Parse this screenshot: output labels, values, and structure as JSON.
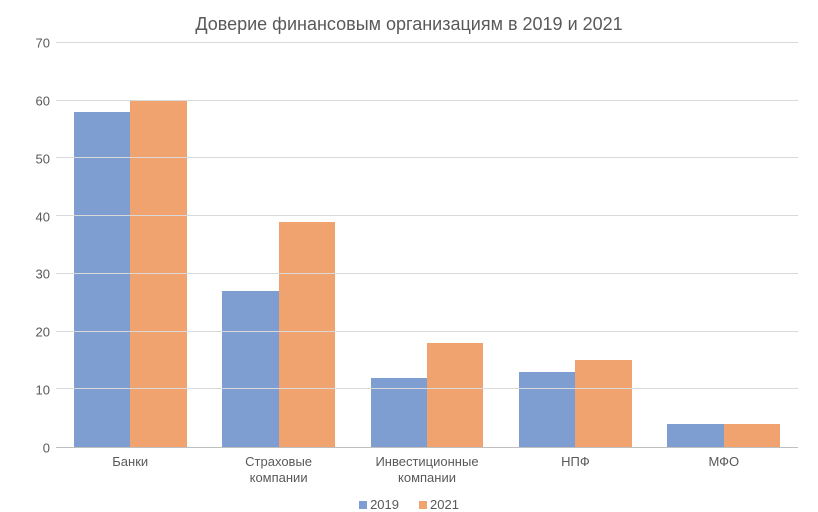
{
  "chart": {
    "type": "bar",
    "title": "Доверие финансовым организациям в 2019 и 2021",
    "title_fontsize": 18,
    "title_color": "#595959",
    "categories": [
      "Банки",
      "Страховые\nкомпании",
      "Инвестиционные\nкомпании",
      "НПФ",
      "МФО"
    ],
    "series": [
      {
        "name": "2019",
        "color": "#7e9dd0",
        "values": [
          58,
          27,
          12,
          13,
          4
        ]
      },
      {
        "name": "2021",
        "color": "#f0a36e",
        "values": [
          60,
          39,
          18,
          15,
          4
        ]
      }
    ],
    "y_axis": {
      "min": 0,
      "max": 70,
      "step": 10,
      "ticks": [
        0,
        10,
        20,
        30,
        40,
        50,
        60,
        70
      ]
    },
    "grid_color": "#d9d9d9",
    "axis_line_color": "#bfbfbf",
    "label_color": "#595959",
    "label_fontsize": 13,
    "background_color": "#ffffff",
    "bar_group_width_pct": 76
  }
}
